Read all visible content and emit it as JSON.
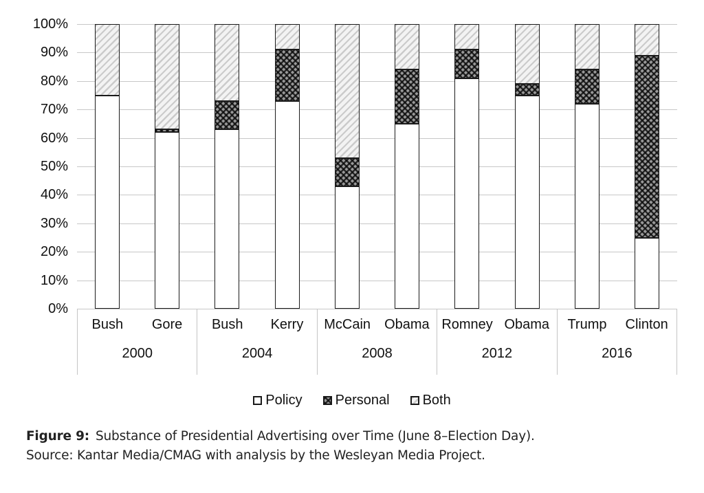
{
  "figure": {
    "caption_label": "Figure 9:",
    "caption_text": "Substance of Presidential Advertising over Time (June 8–Election Day).",
    "source_text": "Source: Kantar Media/CMAG with analysis by the Wesleyan Media Project."
  },
  "chart_data": {
    "type": "bar",
    "stacked": true,
    "orientation": "vertical",
    "title": "",
    "xlabel": "",
    "ylabel": "",
    "ylim": [
      0,
      100
    ],
    "grid": "horizontal",
    "legend_position": "bottom",
    "y_axis": {
      "unit": "%",
      "step": 10,
      "ticks": [
        "100%",
        "90%",
        "80%",
        "70%",
        "60%",
        "50%",
        "40%",
        "30%",
        "20%",
        "10%",
        "0%"
      ]
    },
    "categories": [
      "Bush",
      "Gore",
      "Bush",
      "Kerry",
      "McCain",
      "Obama",
      "Romney",
      "Obama",
      "Trump",
      "Clinton"
    ],
    "groups": [
      {
        "year": "2000",
        "candidates": [
          "Bush",
          "Gore"
        ]
      },
      {
        "year": "2004",
        "candidates": [
          "Bush",
          "Kerry"
        ]
      },
      {
        "year": "2008",
        "candidates": [
          "McCain",
          "Obama"
        ]
      },
      {
        "year": "2012",
        "candidates": [
          "Romney",
          "Obama"
        ]
      },
      {
        "year": "2016",
        "candidates": [
          "Trump",
          "Clinton"
        ]
      }
    ],
    "series": [
      {
        "name": "Policy",
        "pattern": "solid-white",
        "values": [
          75,
          62,
          63,
          73,
          43,
          65,
          81,
          75,
          72,
          25
        ]
      },
      {
        "name": "Personal",
        "pattern": "dark-crosshatch",
        "values": [
          0,
          1,
          10,
          18,
          10,
          19,
          10,
          4,
          12,
          64
        ]
      },
      {
        "name": "Both",
        "pattern": "light-diagonal",
        "values": [
          25,
          37,
          27,
          9,
          47,
          16,
          9,
          21,
          16,
          11
        ]
      }
    ]
  },
  "colors": {
    "background": "#ffffff",
    "bar_outline": "#1a1a1a",
    "gridline": "#c7c7c7",
    "axis_box_border": "#c4c4c4",
    "text": "#111111",
    "personal_fill_base": "#9a9a9a",
    "both_fill_base": "#f2f2f2"
  }
}
